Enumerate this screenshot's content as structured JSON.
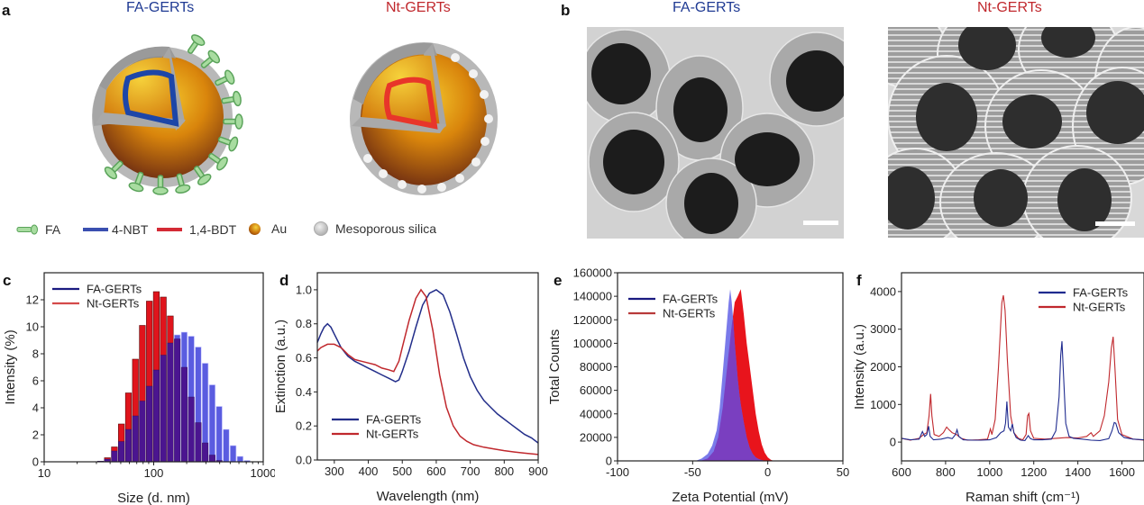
{
  "panels": {
    "a": {
      "letter": "a",
      "titles": [
        {
          "text": "FA-GERTs",
          "color": "#1f3a93"
        },
        {
          "text": "Nt-GERTs",
          "color": "#c0282d"
        }
      ],
      "legend": [
        {
          "icon": "fa-ligand-icon",
          "label": "FA"
        },
        {
          "icon": "blue-line-icon",
          "label": "4-NBT",
          "color": "#3a4fb0"
        },
        {
          "icon": "red-line-icon",
          "label": "1,4-BDT",
          "color": "#d42a35"
        },
        {
          "icon": "gold-sphere-icon",
          "label": "Au"
        },
        {
          "icon": "grey-sphere-icon",
          "label": "Mesoporous silica"
        }
      ]
    },
    "b": {
      "letter": "b",
      "titles": [
        {
          "text": "FA-GERTs",
          "color": "#1f3a93"
        },
        {
          "text": "Nt-GERTs",
          "color": "#c0282d"
        }
      ]
    }
  },
  "chart_data": [
    {
      "panel": "c",
      "type": "bar",
      "xscale": "log",
      "xlabel": "Size (d. nm)",
      "ylabel": "Intensity (%)",
      "xlim": [
        10,
        1000
      ],
      "ylim": [
        0,
        14
      ],
      "xticks": [
        10,
        100,
        1000
      ],
      "yticks": [
        0,
        2,
        4,
        6,
        8,
        10,
        12
      ],
      "legend": {
        "position": "top-left",
        "entries": [
          "FA-GERTs",
          "Nt-GERTs"
        ]
      },
      "x": [
        32.7,
        37.8,
        43.8,
        50.7,
        58.8,
        68.1,
        78.8,
        91.3,
        105.7,
        122.4,
        141.8,
        164.2,
        190.1,
        220.2,
        255.0,
        295.3,
        342.0,
        396.1,
        458.7,
        531.2,
        615.1,
        712.4
      ],
      "series": [
        {
          "name": "FA-GERTs",
          "color": "#5a5ce0",
          "overlap_color": "#4b1590",
          "values": [
            0.05,
            0.2,
            0.8,
            1.5,
            2.4,
            3.4,
            4.5,
            5.6,
            6.8,
            7.9,
            8.8,
            9.4,
            9.6,
            9.3,
            8.5,
            7.3,
            5.7,
            4.1,
            2.4,
            1.2,
            0.4,
            0.1
          ]
        },
        {
          "name": "Nt-GERTs",
          "color": "#e0141c",
          "values": [
            0.05,
            0.3,
            1.1,
            2.8,
            5.1,
            7.6,
            10.1,
            11.9,
            12.6,
            12.2,
            10.8,
            9.1,
            7.0,
            4.8,
            2.9,
            1.4,
            0.5,
            0.1,
            0,
            0,
            0,
            0
          ]
        }
      ]
    },
    {
      "panel": "d",
      "type": "line",
      "xlabel": "Wavelength (nm)",
      "ylabel": "Extinction (a.u.)",
      "xlim": [
        250,
        900
      ],
      "ylim": [
        0,
        1.1
      ],
      "xticks": [
        300,
        400,
        500,
        600,
        700,
        800,
        900
      ],
      "yticks": [
        "0.0",
        "0.2",
        "0.4",
        "0.6",
        "0.8",
        "1.0"
      ],
      "legend": {
        "position": "bottom-left",
        "entries": [
          "FA-GERTs",
          "Nt-GERTs"
        ]
      },
      "series": [
        {
          "name": "FA-GERTs",
          "color": "#232e8a",
          "x": [
            250,
            260,
            270,
            280,
            290,
            300,
            320,
            340,
            360,
            380,
            400,
            420,
            440,
            460,
            480,
            490,
            500,
            520,
            540,
            560,
            580,
            600,
            620,
            640,
            660,
            680,
            700,
            720,
            740,
            760,
            780,
            800,
            820,
            840,
            860,
            880,
            900
          ],
          "y": [
            0.69,
            0.74,
            0.78,
            0.8,
            0.78,
            0.74,
            0.66,
            0.61,
            0.58,
            0.56,
            0.54,
            0.52,
            0.5,
            0.48,
            0.46,
            0.47,
            0.52,
            0.64,
            0.78,
            0.91,
            0.98,
            1.0,
            0.97,
            0.87,
            0.74,
            0.6,
            0.49,
            0.41,
            0.35,
            0.31,
            0.27,
            0.24,
            0.21,
            0.18,
            0.15,
            0.13,
            0.1
          ]
        },
        {
          "name": "Nt-GERTs",
          "color": "#c0282d",
          "x": [
            250,
            260,
            270,
            280,
            290,
            300,
            320,
            340,
            360,
            380,
            400,
            420,
            440,
            460,
            475,
            490,
            500,
            520,
            540,
            555,
            570,
            590,
            610,
            630,
            650,
            670,
            690,
            710,
            740,
            770,
            800,
            830,
            860,
            900
          ],
          "y": [
            0.64,
            0.66,
            0.67,
            0.68,
            0.68,
            0.68,
            0.66,
            0.62,
            0.59,
            0.58,
            0.57,
            0.56,
            0.54,
            0.53,
            0.52,
            0.58,
            0.66,
            0.82,
            0.95,
            1.0,
            0.96,
            0.76,
            0.5,
            0.31,
            0.2,
            0.14,
            0.11,
            0.09,
            0.075,
            0.065,
            0.055,
            0.047,
            0.04,
            0.032
          ]
        }
      ]
    },
    {
      "panel": "e",
      "type": "area",
      "xlabel": "Zeta Potential (mV)",
      "ylabel": "Total Counts",
      "xlim": [
        -100,
        50
      ],
      "ylim": [
        0,
        160000
      ],
      "xticks": [
        -100,
        -50,
        0,
        50
      ],
      "yticks": [
        0,
        20000,
        40000,
        60000,
        80000,
        100000,
        120000,
        140000,
        160000
      ],
      "legend": {
        "position": "top-left",
        "entries": [
          "FA-GERTs",
          "Nt-GERTs"
        ]
      },
      "series": [
        {
          "name": "Nt-GERTs",
          "color": "#e8141c",
          "x": [
            -45,
            -40,
            -36,
            -33,
            -30,
            -27,
            -24,
            -22,
            -20,
            -18,
            -16,
            -14,
            -12,
            -10,
            -8,
            -6,
            -4,
            -2,
            0,
            2,
            4
          ],
          "y": [
            0,
            2000,
            8000,
            20000,
            45000,
            80000,
            115000,
            135000,
            140000,
            146000,
            125000,
            100000,
            80000,
            60000,
            40000,
            25000,
            14000,
            7000,
            3000,
            1000,
            0
          ]
        },
        {
          "name": "FA-GERTs",
          "color": "#6f6fe8",
          "x": [
            -48,
            -44,
            -40,
            -37,
            -34,
            -32,
            -30,
            -28,
            -26,
            -25,
            -24,
            -23,
            -22,
            -21,
            -20,
            -19,
            -18,
            -16,
            -14,
            -12,
            -10,
            -8,
            -6,
            -4,
            -2,
            0
          ],
          "y": [
            0,
            2000,
            6000,
            13000,
            26000,
            45000,
            75000,
            105000,
            135000,
            146000,
            135000,
            120000,
            100000,
            85000,
            70000,
            58000,
            48000,
            33000,
            20000,
            11000,
            6000,
            3000,
            1500,
            700,
            200,
            0
          ]
        }
      ],
      "overlap_color": "#7a3fc0"
    },
    {
      "panel": "f",
      "type": "line",
      "xlabel": "Raman  shift (cm⁻¹)",
      "ylabel": "Intensity (a.u.)",
      "xlim": [
        600,
        1700
      ],
      "ylim": [
        -500,
        4500
      ],
      "xticks": [
        600,
        800,
        1000,
        1200,
        1400,
        1600
      ],
      "yticks": [
        0,
        1000,
        2000,
        3000,
        4000
      ],
      "legend": {
        "position": "top-right",
        "entries": [
          "FA-GERTs",
          "Nt-GERTs"
        ]
      },
      "series": [
        {
          "name": "FA-GERTs",
          "color": "#1f2b8f",
          "x": [
            600,
            640,
            680,
            695,
            705,
            715,
            723,
            730,
            745,
            780,
            810,
            830,
            845,
            852,
            860,
            880,
            920,
            960,
            1000,
            1030,
            1050,
            1065,
            1072,
            1078,
            1085,
            1095,
            1103,
            1110,
            1120,
            1140,
            1160,
            1175,
            1185,
            1200,
            1240,
            1280,
            1300,
            1315,
            1322,
            1328,
            1335,
            1345,
            1360,
            1380,
            1420,
            1460,
            1500,
            1540,
            1555,
            1565,
            1572,
            1585,
            1610,
            1650,
            1700
          ],
          "y": [
            100,
            60,
            80,
            280,
            150,
            200,
            420,
            150,
            60,
            80,
            120,
            90,
            200,
            330,
            150,
            60,
            50,
            50,
            60,
            120,
            250,
            300,
            500,
            1080,
            400,
            300,
            480,
            250,
            120,
            50,
            40,
            170,
            90,
            60,
            60,
            80,
            300,
            1200,
            2300,
            2680,
            1800,
            500,
            150,
            100,
            80,
            50,
            40,
            90,
            300,
            520,
            500,
            250,
            120,
            80,
            60
          ]
        },
        {
          "name": "Nt-GERTs",
          "color": "#c0282d",
          "x": [
            600,
            640,
            680,
            700,
            715,
            725,
            732,
            738,
            748,
            770,
            790,
            805,
            815,
            830,
            850,
            870,
            900,
            950,
            990,
            1003,
            1010,
            1025,
            1040,
            1055,
            1062,
            1070,
            1080,
            1095,
            1110,
            1130,
            1150,
            1165,
            1172,
            1178,
            1185,
            1200,
            1250,
            1300,
            1350,
            1400,
            1440,
            1460,
            1470,
            1500,
            1520,
            1540,
            1552,
            1560,
            1568,
            1580,
            1600,
            1650,
            1700
          ],
          "y": [
            100,
            50,
            100,
            200,
            250,
            700,
            1280,
            700,
            200,
            150,
            250,
            400,
            330,
            250,
            200,
            100,
            50,
            60,
            80,
            350,
            200,
            600,
            2000,
            3700,
            3900,
            3500,
            2200,
            700,
            250,
            100,
            60,
            200,
            700,
            760,
            300,
            100,
            80,
            100,
            120,
            110,
            150,
            250,
            150,
            300,
            700,
            1600,
            2500,
            2800,
            2000,
            600,
            200,
            80,
            50
          ]
        }
      ]
    }
  ],
  "scale_bar_note": "white scale bars on TEM images (no label)"
}
